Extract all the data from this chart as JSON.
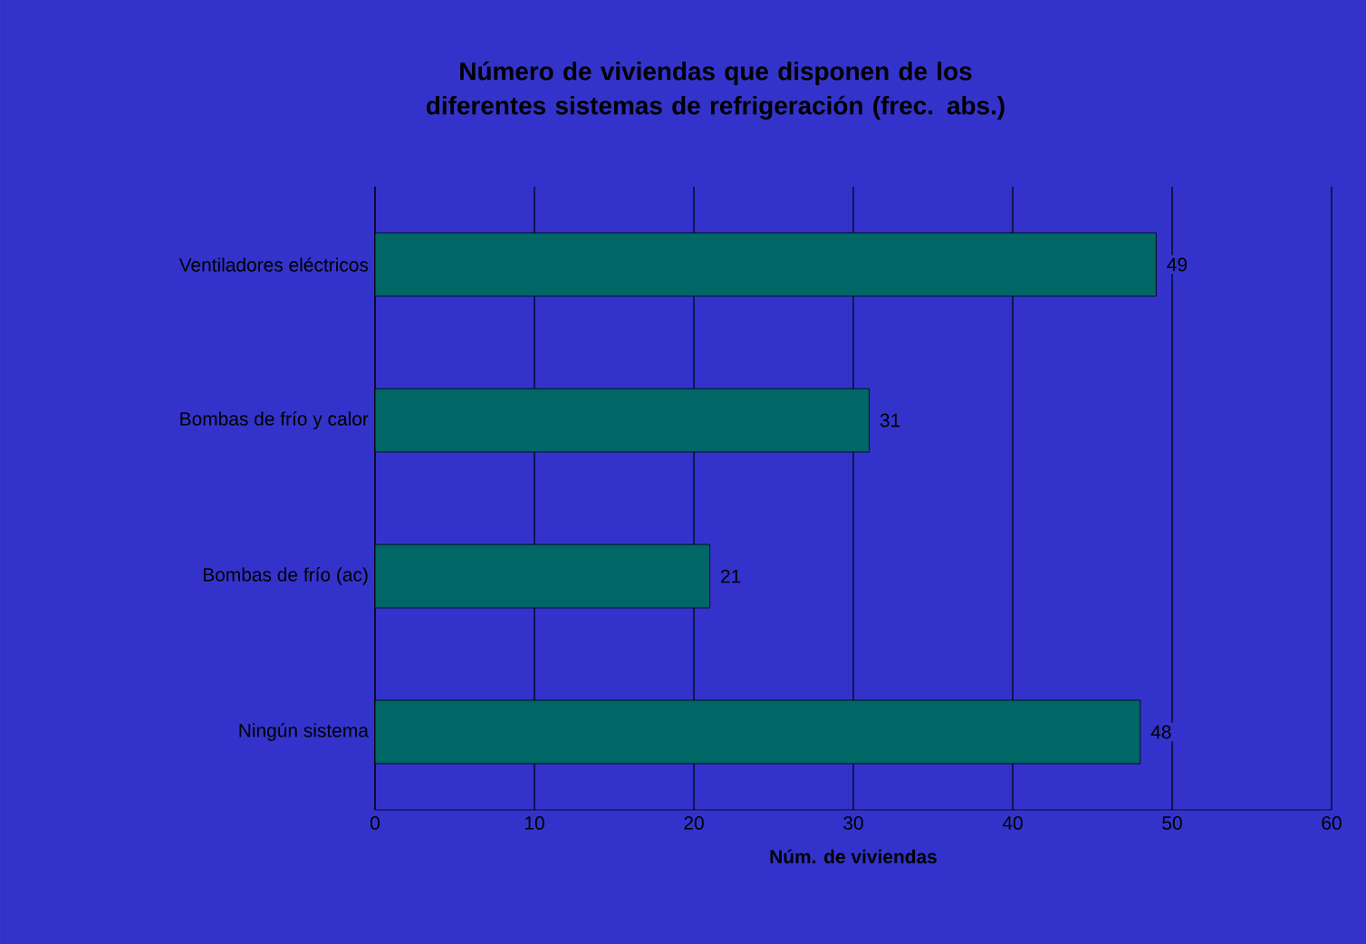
{
  "chart_data": {
    "type": "bar",
    "orientation": "horizontal",
    "title": "Número de viviendas que disponen de los diferentes sistemas de refrigeración (frec. abs.)",
    "xlabel": "Núm. de viviendas",
    "categories": [
      "Ventiladores eléctricos",
      "Bombas de frío y calor",
      "Bombas de frío (ac)",
      "Ningún sistema"
    ],
    "values": [
      49,
      31,
      21,
      48
    ],
    "color": "#006666",
    "xlim": [
      0,
      60
    ],
    "xticks": [
      0,
      10,
      20,
      30,
      40,
      50,
      60
    ],
    "grid": "x",
    "data_labels": true
  }
}
